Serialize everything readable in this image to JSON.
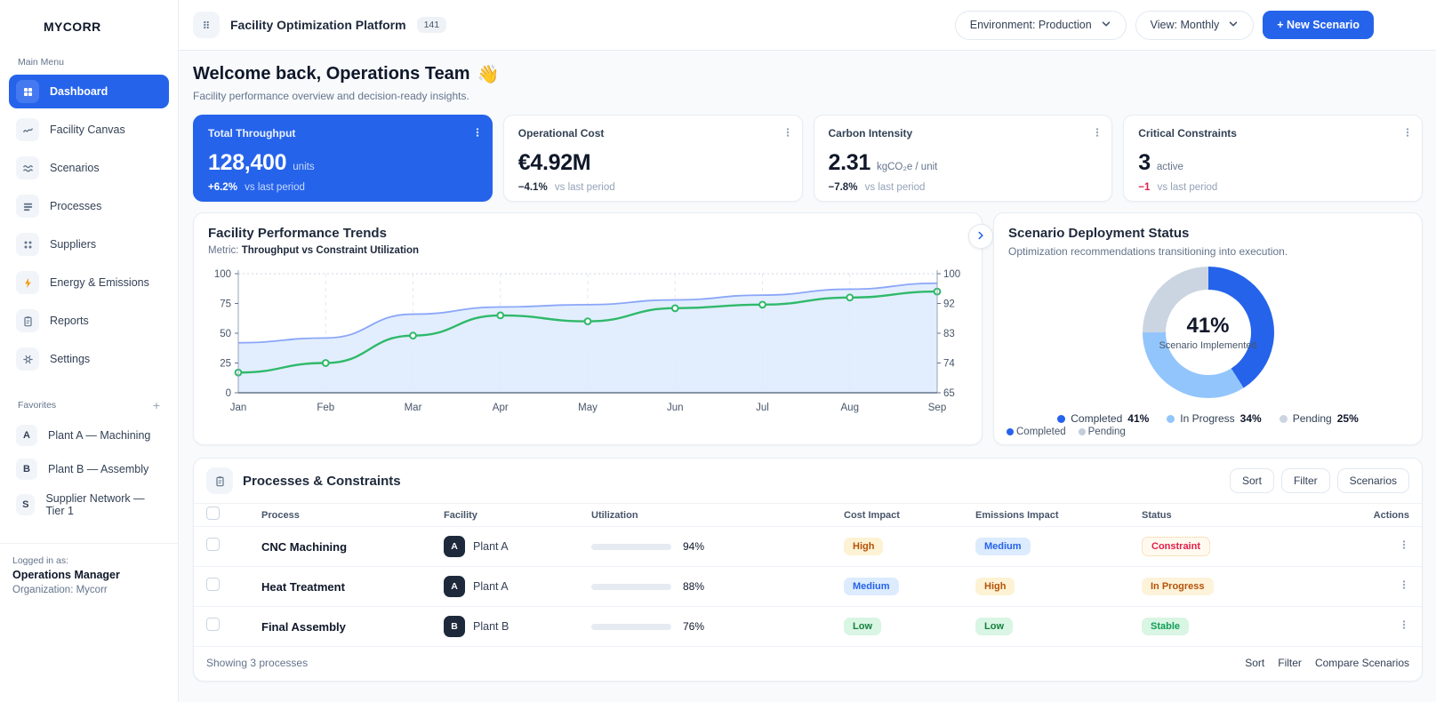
{
  "brand": "MYCORR",
  "topbar": {
    "title": "Facility Optimization Platform",
    "badge": "141",
    "environment": "Environment: Production",
    "view": "View: Monthly",
    "new_scenario": "+ New Scenario"
  },
  "sidebar": {
    "main_menu_label": "Main Menu",
    "items": [
      {
        "label": "Dashboard",
        "active": true
      },
      {
        "label": "Facility Canvas"
      },
      {
        "label": "Scenarios"
      },
      {
        "label": "Processes"
      },
      {
        "label": "Suppliers"
      },
      {
        "label": "Energy & Emissions"
      },
      {
        "label": "Reports"
      },
      {
        "label": "Settings"
      }
    ],
    "favorites_label": "Favorites",
    "favorites_add": "+",
    "favorites": [
      {
        "letter": "A",
        "label": "Plant A — Machining"
      },
      {
        "letter": "B",
        "label": "Plant B — Assembly"
      },
      {
        "letter": "S",
        "label": "Supplier Network — Tier 1"
      }
    ],
    "logged_in_label": "Logged in as:",
    "user_name": "Operations Manager",
    "organization": "Organization: Mycorr"
  },
  "welcome": {
    "title": "Welcome back, Operations Team",
    "emoji": "👋",
    "subtitle": "Facility performance overview and decision-ready insights."
  },
  "kpis": [
    {
      "label": "Total Throughput",
      "value": "128,400",
      "unit": "units",
      "delta": "+6.2%",
      "note": "vs last period",
      "delta_hex": "#ffffff"
    },
    {
      "label": "Operational Cost",
      "value": "€4.92M",
      "unit": "",
      "delta": "−4.1%",
      "note": "vs last period",
      "delta_hex": "#1e293b"
    },
    {
      "label": "Carbon Intensity",
      "value": "2.31",
      "unit": "kgCO₂e / unit",
      "delta": "−7.8%",
      "note": "vs last period",
      "delta_hex": "#1e293b"
    },
    {
      "label": "Critical Constraints",
      "value": "3",
      "unit": "active",
      "delta": "−1",
      "note": "vs last period",
      "delta_hex": "#e11d48"
    }
  ],
  "trend": {
    "title": "Facility Performance Trends",
    "metric_label": "Metric:",
    "metric_value": "Throughput vs Constraint Utilization"
  },
  "deployment": {
    "title": "Scenario Deployment Status",
    "subtitle": "Optimization recommendations transitioning into execution.",
    "legend_values": [
      "41%",
      "34%",
      "25%"
    ],
    "mini_legend": [
      {
        "label": "Completed",
        "color": "#2563eb"
      },
      {
        "label": "Pending",
        "color": "#c3cdd9"
      }
    ]
  },
  "table": {
    "title": "Processes & Constraints",
    "toolbar": [
      "Sort",
      "Filter",
      "Scenarios"
    ],
    "columns": [
      "Process",
      "Facility",
      "Utilization",
      "Cost Impact",
      "Emissions Impact",
      "Status",
      "Actions"
    ],
    "rows": [
      {
        "process": "CNC Machining",
        "facility_letter": "A",
        "facility": "Plant A",
        "utilization": "94%",
        "cost": "High",
        "cost_variant": "high",
        "emissions": "Medium",
        "emissions_variant": "medium",
        "status": "Constraint",
        "status_variant": "constraint"
      },
      {
        "process": "Heat Treatment",
        "facility_letter": "A",
        "facility": "Plant A",
        "utilization": "88%",
        "cost": "Medium",
        "cost_variant": "medium",
        "emissions": "High",
        "emissions_variant": "high",
        "status": "In Progress",
        "status_variant": "inprogress"
      },
      {
        "process": "Final Assembly",
        "facility_letter": "B",
        "facility": "Plant B",
        "utilization": "76%",
        "cost": "Low",
        "cost_variant": "low",
        "emissions": "Low",
        "emissions_variant": "low",
        "status": "Stable",
        "status_variant": "stable"
      }
    ],
    "footer_summary": "Showing 3 processes",
    "footer_links": [
      "Sort",
      "Filter",
      "Compare Scenarios"
    ]
  },
  "chart_data": [
    {
      "type": "line",
      "title": "Facility Performance Trends",
      "x": [
        "Jan",
        "Feb",
        "Mar",
        "Apr",
        "May",
        "Jun",
        "Jul",
        "Aug",
        "Sep"
      ],
      "series": [
        {
          "name": "Throughput",
          "style": "area",
          "color": "#8ba6f9",
          "fill": "#dbeafe",
          "values": [
            42,
            46,
            66,
            72,
            74,
            78,
            82,
            87,
            92
          ]
        },
        {
          "name": "Constraint Utilization",
          "style": "line-markers",
          "color": "#2fb96a",
          "values": [
            17,
            25,
            48,
            65,
            60,
            71,
            74,
            80,
            85
          ]
        }
      ],
      "y_left": {
        "ticks": [
          0,
          25,
          50,
          75,
          100
        ],
        "range": [
          0,
          100
        ]
      },
      "y_right": {
        "ticks": [
          65,
          74,
          83,
          92,
          100
        ]
      },
      "grid": "vertical-dashed",
      "legend_position": "none"
    },
    {
      "type": "donut",
      "title": "Scenario Deployment Status",
      "slices": [
        {
          "label": "Completed",
          "value": 41,
          "color": "#2563eb"
        },
        {
          "label": "In Progress",
          "value": 34,
          "color": "#93c5fd"
        },
        {
          "label": "Pending",
          "value": 25,
          "color": "#cbd5e1"
        }
      ],
      "center_value": "41%",
      "center_label": "Scenario Implemented"
    }
  ]
}
